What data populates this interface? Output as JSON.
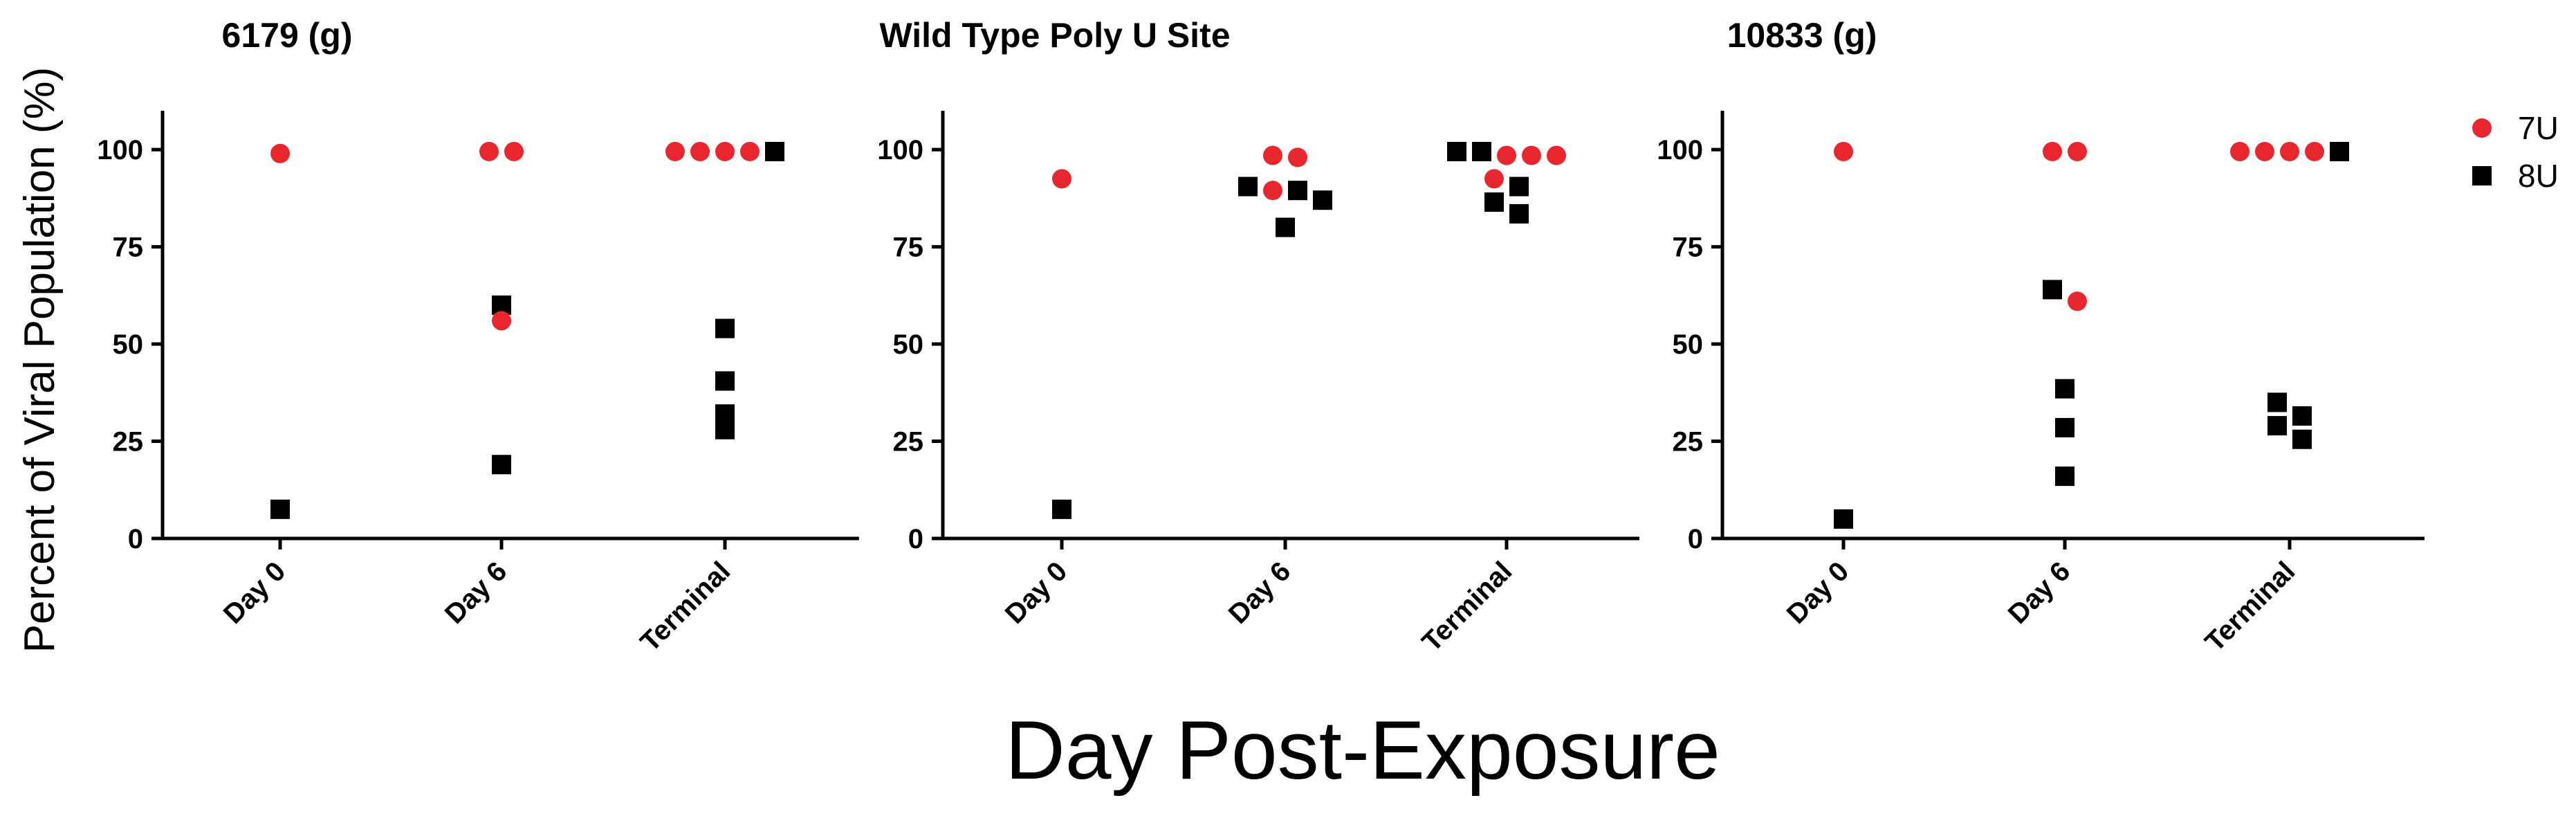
{
  "figure": {
    "ylabel": "Percent of Viral Population (%)",
    "xlabel": "Day Post-Exposure"
  },
  "legend": [
    {
      "name": "7U",
      "color": "#e8262d",
      "marker": "circle"
    },
    {
      "name": "8U",
      "color": "#000000",
      "marker": "square"
    }
  ],
  "chart_data": [
    {
      "type": "scatter",
      "title": "6179 (g)",
      "categories": [
        "Day 0",
        "Day 6",
        "Terminal"
      ],
      "ylim": [
        0,
        110
      ],
      "yticks": [
        0,
        25,
        50,
        75,
        100
      ],
      "series": [
        {
          "name": "7U",
          "points": [
            {
              "category": "Day 0",
              "y": 99
            },
            {
              "category": "Day 6",
              "y": 99.5
            },
            {
              "category": "Day 6",
              "y": 99.5
            },
            {
              "category": "Day 6",
              "y": 56
            },
            {
              "category": "Terminal",
              "y": 99.5
            },
            {
              "category": "Terminal",
              "y": 99.5
            },
            {
              "category": "Terminal",
              "y": 99.5
            },
            {
              "category": "Terminal",
              "y": 99.5
            }
          ]
        },
        {
          "name": "8U",
          "points": [
            {
              "category": "Day 0",
              "y": 7.5
            },
            {
              "category": "Day 6",
              "y": 60
            },
            {
              "category": "Day 6",
              "y": 19
            },
            {
              "category": "Terminal",
              "y": 99.5
            },
            {
              "category": "Terminal",
              "y": 54
            },
            {
              "category": "Terminal",
              "y": 40.5
            },
            {
              "category": "Terminal",
              "y": 32
            },
            {
              "category": "Terminal",
              "y": 28
            }
          ]
        }
      ]
    },
    {
      "type": "scatter",
      "title": "Wild Type Poly U Site",
      "categories": [
        "Day 0",
        "Day 6",
        "Terminal"
      ],
      "ylim": [
        0,
        110
      ],
      "yticks": [
        0,
        25,
        50,
        75,
        100
      ],
      "series": [
        {
          "name": "7U",
          "points": [
            {
              "category": "Day 0",
              "y": 92.5
            },
            {
              "category": "Day 6",
              "y": 98
            },
            {
              "category": "Day 6",
              "y": 98.5
            },
            {
              "category": "Day 6",
              "y": 89.5
            },
            {
              "category": "Terminal",
              "y": 98.5
            },
            {
              "category": "Terminal",
              "y": 98.5
            },
            {
              "category": "Terminal",
              "y": 98.5
            },
            {
              "category": "Terminal",
              "y": 92.5
            }
          ]
        },
        {
          "name": "8U",
          "points": [
            {
              "category": "Day 0",
              "y": 7.5
            },
            {
              "category": "Day 6",
              "y": 90.5
            },
            {
              "category": "Day 6",
              "y": 89.5
            },
            {
              "category": "Day 6",
              "y": 87
            },
            {
              "category": "Day 6",
              "y": 80
            },
            {
              "category": "Terminal",
              "y": 99.5
            },
            {
              "category": "Terminal",
              "y": 99.5
            },
            {
              "category": "Terminal",
              "y": 90.5
            },
            {
              "category": "Terminal",
              "y": 86.5
            },
            {
              "category": "Terminal",
              "y": 83.5
            }
          ]
        }
      ]
    },
    {
      "type": "scatter",
      "title": "10833 (g)",
      "categories": [
        "Day 0",
        "Day 6",
        "Terminal"
      ],
      "ylim": [
        0,
        110
      ],
      "yticks": [
        0,
        25,
        50,
        75,
        100
      ],
      "series": [
        {
          "name": "7U",
          "points": [
            {
              "category": "Day 0",
              "y": 99.5
            },
            {
              "category": "Day 6",
              "y": 99.5
            },
            {
              "category": "Day 6",
              "y": 99.5
            },
            {
              "category": "Day 6",
              "y": 61
            },
            {
              "category": "Terminal",
              "y": 99.5
            },
            {
              "category": "Terminal",
              "y": 99.5
            },
            {
              "category": "Terminal",
              "y": 99.5
            },
            {
              "category": "Terminal",
              "y": 99.5
            }
          ]
        },
        {
          "name": "8U",
          "points": [
            {
              "category": "Day 0",
              "y": 5
            },
            {
              "category": "Day 6",
              "y": 64
            },
            {
              "category": "Day 6",
              "y": 38.5
            },
            {
              "category": "Day 6",
              "y": 28.5
            },
            {
              "category": "Day 6",
              "y": 16
            },
            {
              "category": "Terminal",
              "y": 99.5
            },
            {
              "category": "Terminal",
              "y": 35
            },
            {
              "category": "Terminal",
              "y": 31.5
            },
            {
              "category": "Terminal",
              "y": 29
            },
            {
              "category": "Terminal",
              "y": 25.5
            }
          ]
        }
      ]
    }
  ]
}
